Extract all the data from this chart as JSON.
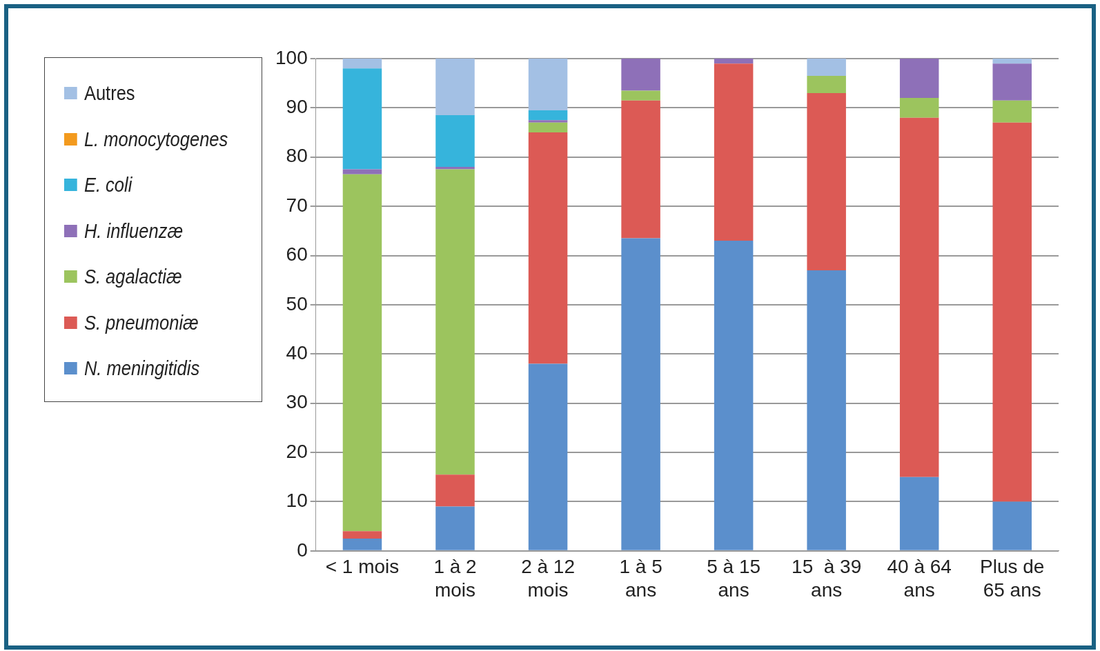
{
  "chart_data": {
    "type": "bar",
    "stacked": true,
    "categories": [
      "< 1 mois",
      "1 à 2\nmois",
      "2 à 12\nmois",
      "1 à 5\nans",
      "5 à 15\nans",
      "15  à 39\nans",
      "40 à 64\nans",
      "Plus de\n65 ans"
    ],
    "ylim": [
      0,
      100
    ],
    "yticks": [
      0,
      10,
      20,
      30,
      40,
      50,
      60,
      70,
      80,
      90,
      100
    ],
    "grid": "y",
    "legend": "left",
    "series": [
      {
        "name": "N. meningitidis",
        "color": "#5b8fcc",
        "values": [
          2.5,
          9,
          38,
          63.5,
          63,
          57,
          15,
          10
        ]
      },
      {
        "name": "S. pneumoniæ",
        "color": "#dc5a55",
        "values": [
          1.5,
          6.5,
          47,
          28,
          36,
          36,
          73,
          77
        ]
      },
      {
        "name": "S. agalactiæ",
        "color": "#9cc45e",
        "values": [
          72.5,
          62,
          2,
          2,
          0,
          3.5,
          4,
          4.5
        ]
      },
      {
        "name": "H. influenzæ",
        "color": "#8e70b8",
        "values": [
          1,
          0.5,
          0.5,
          6.5,
          1,
          0,
          8,
          7.5
        ]
      },
      {
        "name": "E. coli",
        "color": "#36b4dc",
        "values": [
          20.5,
          10.5,
          2,
          0,
          0,
          0,
          0,
          0
        ]
      },
      {
        "name": "L. monocytogenes",
        "color": "#f39a1e",
        "values": [
          0,
          0,
          0,
          0,
          0,
          0,
          0,
          0
        ]
      },
      {
        "name": "Autres",
        "color": "#a3c0e4",
        "values": [
          2,
          11.5,
          10.5,
          0,
          0,
          3.5,
          0,
          1
        ]
      }
    ]
  }
}
